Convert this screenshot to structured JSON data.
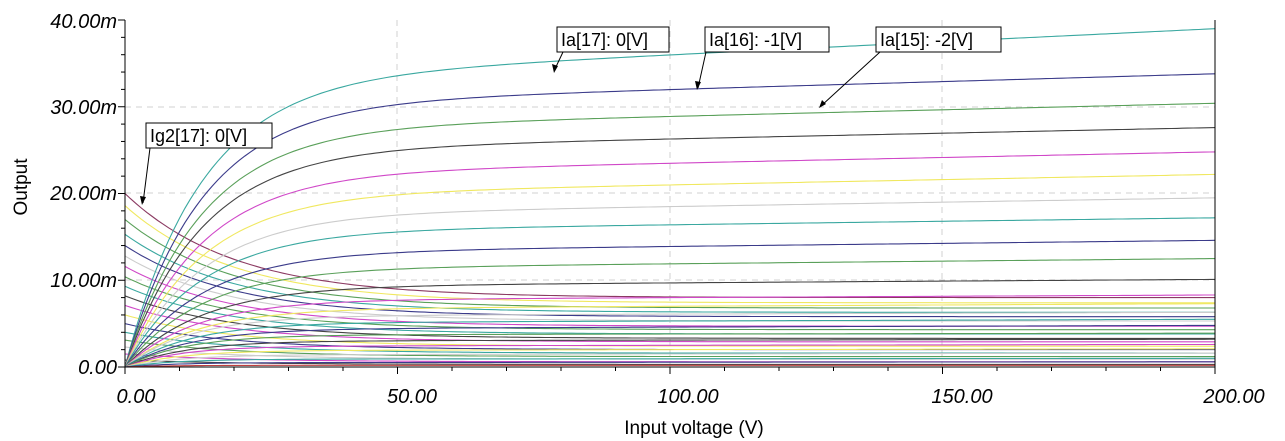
{
  "chart_data": {
    "type": "line",
    "xlabel": "Input voltage (V)",
    "ylabel": "Output",
    "xlim": [
      0,
      200
    ],
    "ylim": [
      0,
      0.04
    ],
    "x_ticks": [
      "0.00",
      "50.00",
      "100.00",
      "150.00",
      "200.00"
    ],
    "y_ticks": [
      "0.00",
      "10.00m",
      "20.00m",
      "30.00m",
      "40.00m"
    ],
    "grid": true,
    "annotations": [
      {
        "text": "Ia[17]: 0[V]",
        "target": [
          78,
          0.0343
        ]
      },
      {
        "text": "Ia[16]: -1[V]",
        "target": [
          105,
          0.0319
        ]
      },
      {
        "text": "Ia[15]: -2[V]",
        "target": [
          128,
          0.0299
        ]
      },
      {
        "text": "Ig2[17]: 0[V]",
        "target": [
          3,
          0.0184
        ]
      }
    ],
    "anode_series": [
      {
        "name": "Ia[17]",
        "color": "#3aa8a0",
        "sat": 0.033,
        "k": 3e-05,
        "knee": 14
      },
      {
        "name": "Ia[16]",
        "color": "#3b3b8a",
        "sat": 0.0302,
        "k": 1.8e-05,
        "knee": 14
      },
      {
        "name": "Ia[15]",
        "color": "#5aa05a",
        "sat": 0.0274,
        "k": 1.5e-05,
        "knee": 14
      },
      {
        "color": "#444444",
        "sat": 0.025,
        "k": 1.3e-05,
        "knee": 14
      },
      {
        "color": "#d048c8",
        "sat": 0.0222,
        "k": 1.3e-05,
        "knee": 14
      },
      {
        "color": "#f0e860",
        "sat": 0.0198,
        "k": 1.2e-05,
        "knee": 14
      },
      {
        "color": "#cccccc",
        "sat": 0.0175,
        "k": 1e-05,
        "knee": 14
      },
      {
        "color": "#3aa8a0",
        "sat": 0.0156,
        "k": 8e-06,
        "knee": 14
      },
      {
        "color": "#3b3b8a",
        "sat": 0.0132,
        "k": 7e-06,
        "knee": 14
      },
      {
        "color": "#5aa05a",
        "sat": 0.0113,
        "k": 6e-06,
        "knee": 14
      },
      {
        "color": "#444444",
        "sat": 0.0093,
        "k": 4e-06,
        "knee": 14
      },
      {
        "color": "#d048c8",
        "sat": 0.0077,
        "k": 3e-06,
        "knee": 13
      },
      {
        "color": "#f0e860",
        "sat": 0.0067,
        "k": 3e-06,
        "knee": 13
      },
      {
        "color": "#cccccc",
        "sat": 0.0059,
        "k": 2e-06,
        "knee": 12
      },
      {
        "color": "#3aa8a0",
        "sat": 0.0051,
        "k": 2e-06,
        "knee": 12
      },
      {
        "color": "#3b3b8a",
        "sat": 0.0044,
        "k": 2e-06,
        "knee": 12
      },
      {
        "color": "#5aa05a",
        "sat": 0.0037,
        "k": 1e-06,
        "knee": 11
      },
      {
        "color": "#444444",
        "sat": 0.003,
        "k": 1e-06,
        "knee": 11
      },
      {
        "color": "#d048c8",
        "sat": 0.0024,
        "k": 1e-06,
        "knee": 10
      },
      {
        "color": "#f0e860",
        "sat": 0.0019,
        "k": 1e-06,
        "knee": 10
      },
      {
        "color": "#cccccc",
        "sat": 0.0014,
        "k": 1e-06,
        "knee": 10
      },
      {
        "color": "#3aa8a0",
        "sat": 0.0009,
        "k": 5e-07,
        "knee": 9
      },
      {
        "color": "#3b3b8a",
        "sat": 0.0005,
        "k": 5e-07,
        "knee": 9
      },
      {
        "color": "#c04040",
        "sat": 0.0002,
        "k": 0.0,
        "knee": 8
      }
    ],
    "screen_series": [
      {
        "name": "Ig2[17]",
        "color": "#8b3a62",
        "start": 0.02,
        "end": 0.008,
        "decay": 20
      },
      {
        "color": "#f0e860",
        "start": 0.0186,
        "end": 0.0074,
        "decay": 20
      },
      {
        "color": "#5aa05a",
        "start": 0.017,
        "end": 0.0068,
        "decay": 20
      },
      {
        "color": "#3aa8a0",
        "start": 0.0153,
        "end": 0.0063,
        "decay": 20
      },
      {
        "color": "#3b3b8a",
        "start": 0.014,
        "end": 0.0058,
        "decay": 20
      },
      {
        "color": "#cccccc",
        "start": 0.0128,
        "end": 0.0053,
        "decay": 20
      },
      {
        "color": "#d048c8",
        "start": 0.0116,
        "end": 0.0047,
        "decay": 20
      },
      {
        "color": "#5aa05a",
        "start": 0.0104,
        "end": 0.0043,
        "decay": 20
      },
      {
        "color": "#3aa8a0",
        "start": 0.0093,
        "end": 0.0038,
        "decay": 20
      },
      {
        "color": "#444444",
        "start": 0.0082,
        "end": 0.0033,
        "decay": 20
      },
      {
        "color": "#d048c8",
        "start": 0.0071,
        "end": 0.0029,
        "decay": 20
      },
      {
        "color": "#f0e860",
        "start": 0.006,
        "end": 0.0024,
        "decay": 20
      },
      {
        "color": "#3b3b8a",
        "start": 0.005,
        "end": 0.002,
        "decay": 20
      },
      {
        "color": "#3aa8a0",
        "start": 0.004,
        "end": 0.0016,
        "decay": 20
      },
      {
        "color": "#5aa05a",
        "start": 0.0031,
        "end": 0.0012,
        "decay": 20
      },
      {
        "color": "#cccccc",
        "start": 0.0023,
        "end": 0.0009,
        "decay": 20
      },
      {
        "color": "#d048c8",
        "start": 0.0015,
        "end": 0.0006,
        "decay": 20
      },
      {
        "color": "#444444",
        "start": 0.0008,
        "end": 0.0003,
        "decay": 20
      }
    ]
  }
}
